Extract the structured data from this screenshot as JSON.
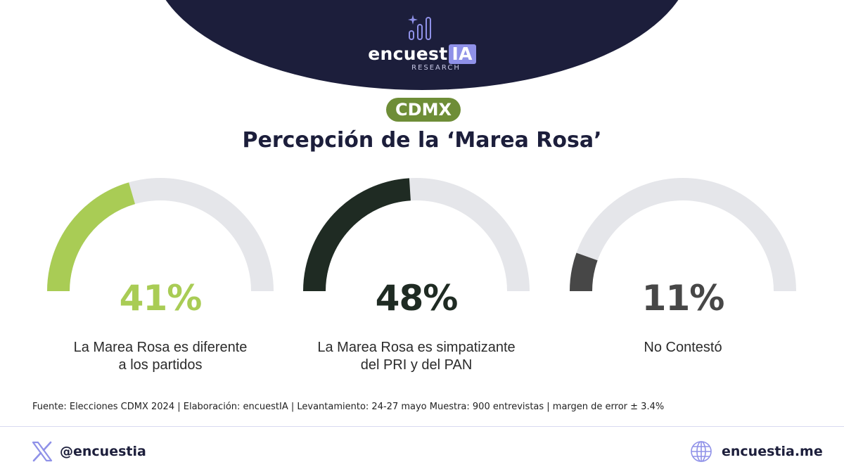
{
  "brand": {
    "name_main": "encuest",
    "name_highlight": "IA",
    "subtitle": "RESEARCH",
    "logo_icon": "bar-chart-sparkle-icon",
    "colors": {
      "navy": "#1c1e3b",
      "accent": "#8f91e8"
    }
  },
  "badge": {
    "label": "CDMX",
    "color": "#6e8d37"
  },
  "chart_data": {
    "type": "gauge",
    "title": "Percepción de la ‘Marea Rosa’",
    "track_color": "#e5e6ea",
    "unit": "%",
    "max": 100,
    "items": [
      {
        "value": 41,
        "value_label": "41%",
        "label": "La Marea Rosa es diferente\na los partidos",
        "color": "#a9cc55"
      },
      {
        "value": 48,
        "value_label": "48%",
        "label": "La Marea Rosa es simpatizante\ndel PRI y del PAN",
        "color": "#1f2b23"
      },
      {
        "value": 11,
        "value_label": "11%",
        "label": "No Contestó",
        "color": "#474747"
      }
    ]
  },
  "source_note": "Fuente: Elecciones CDMX 2024 | Elaboración: encuestIA | Levantamiento: 24-27 mayo Muestra: 900 entrevistas | margen de error ± 3.4%",
  "footer": {
    "social_icon": "x-logo-icon",
    "social_handle": "@encuestia",
    "web_icon": "globe-icon",
    "website": "encuestia.me"
  }
}
